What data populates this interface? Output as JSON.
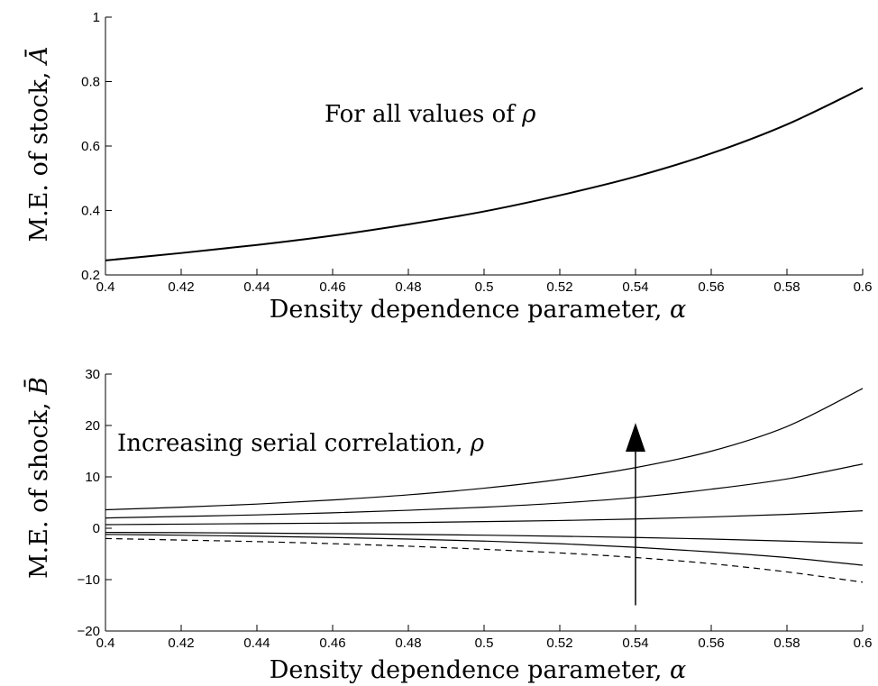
{
  "chart_data": [
    {
      "type": "line",
      "xlabel": "Density dependence parameter, ",
      "xlabel_symbol": "α",
      "ylabel": "M.E. of stock, ",
      "ylabel_symbol": "Ā",
      "xlim": [
        0.4,
        0.6
      ],
      "ylim": [
        0.2,
        1.0
      ],
      "xticks": [
        0.4,
        0.42,
        0.44,
        0.46,
        0.48,
        0.5,
        0.52,
        0.54,
        0.56,
        0.58,
        0.6
      ],
      "xtick_labels": [
        "0.4",
        "0.42",
        "0.44",
        "0.46",
        "0.48",
        "0.5",
        "0.52",
        "0.54",
        "0.56",
        "0.58",
        "0.6"
      ],
      "yticks": [
        0.2,
        0.4,
        0.6,
        0.8,
        1.0
      ],
      "ytick_labels": [
        "0.2",
        "0.4",
        "0.6",
        "0.8",
        "1"
      ],
      "grid": false,
      "annotation": {
        "text": "For all values of ",
        "symbol": "ρ"
      },
      "x": [
        0.4,
        0.42,
        0.44,
        0.46,
        0.48,
        0.5,
        0.52,
        0.54,
        0.56,
        0.58,
        0.6
      ],
      "series": [
        {
          "values": [
            0.245,
            0.268,
            0.293,
            0.322,
            0.357,
            0.397,
            0.447,
            0.505,
            0.577,
            0.667,
            0.78
          ],
          "style": "solid"
        }
      ]
    },
    {
      "type": "line",
      "xlabel": "Density dependence parameter, ",
      "xlabel_symbol": "α",
      "ylabel": "M.E. of shock, ",
      "ylabel_symbol": "B̄",
      "xlim": [
        0.4,
        0.6
      ],
      "ylim": [
        -20,
        30
      ],
      "xticks": [
        0.4,
        0.42,
        0.44,
        0.46,
        0.48,
        0.5,
        0.52,
        0.54,
        0.56,
        0.58,
        0.6
      ],
      "xtick_labels": [
        "0.4",
        "0.42",
        "0.44",
        "0.46",
        "0.48",
        "0.5",
        "0.52",
        "0.54",
        "0.56",
        "0.58",
        "0.6"
      ],
      "yticks": [
        -20,
        -10,
        0,
        10,
        20,
        30
      ],
      "ytick_labels": [
        "−20",
        "−10",
        "0",
        "10",
        "20",
        "30"
      ],
      "grid": false,
      "annotation": {
        "text": "Increasing serial correlation, ",
        "symbol": "ρ"
      },
      "arrow": {
        "x": 0.54,
        "y_from": -15,
        "y_to": 20.5
      },
      "x": [
        0.4,
        0.42,
        0.44,
        0.46,
        0.48,
        0.5,
        0.52,
        0.54,
        0.56,
        0.58,
        0.6
      ],
      "series": [
        {
          "values": [
            3.6,
            4.1,
            4.7,
            5.5,
            6.5,
            7.8,
            9.5,
            11.8,
            15.0,
            19.8,
            27.2
          ],
          "style": "solid"
        },
        {
          "values": [
            2.0,
            2.3,
            2.6,
            3.0,
            3.5,
            4.1,
            4.9,
            6.0,
            7.6,
            9.6,
            12.5
          ],
          "style": "solid"
        },
        {
          "values": [
            0.7,
            0.8,
            0.9,
            1.0,
            1.1,
            1.3,
            1.5,
            1.8,
            2.2,
            2.7,
            3.4
          ],
          "style": "solid"
        },
        {
          "values": [
            -0.8,
            -0.85,
            -0.95,
            -1.05,
            -1.2,
            -1.35,
            -1.55,
            -1.8,
            -2.1,
            -2.5,
            -2.9
          ],
          "style": "solid"
        },
        {
          "values": [
            -1.2,
            -1.35,
            -1.55,
            -1.8,
            -2.1,
            -2.5,
            -3.0,
            -3.7,
            -4.6,
            -5.7,
            -7.2
          ],
          "style": "solid"
        },
        {
          "values": [
            -2.0,
            -2.3,
            -2.6,
            -3.0,
            -3.5,
            -4.1,
            -4.8,
            -5.7,
            -6.9,
            -8.5,
            -10.5
          ],
          "style": "dashed"
        }
      ]
    }
  ]
}
